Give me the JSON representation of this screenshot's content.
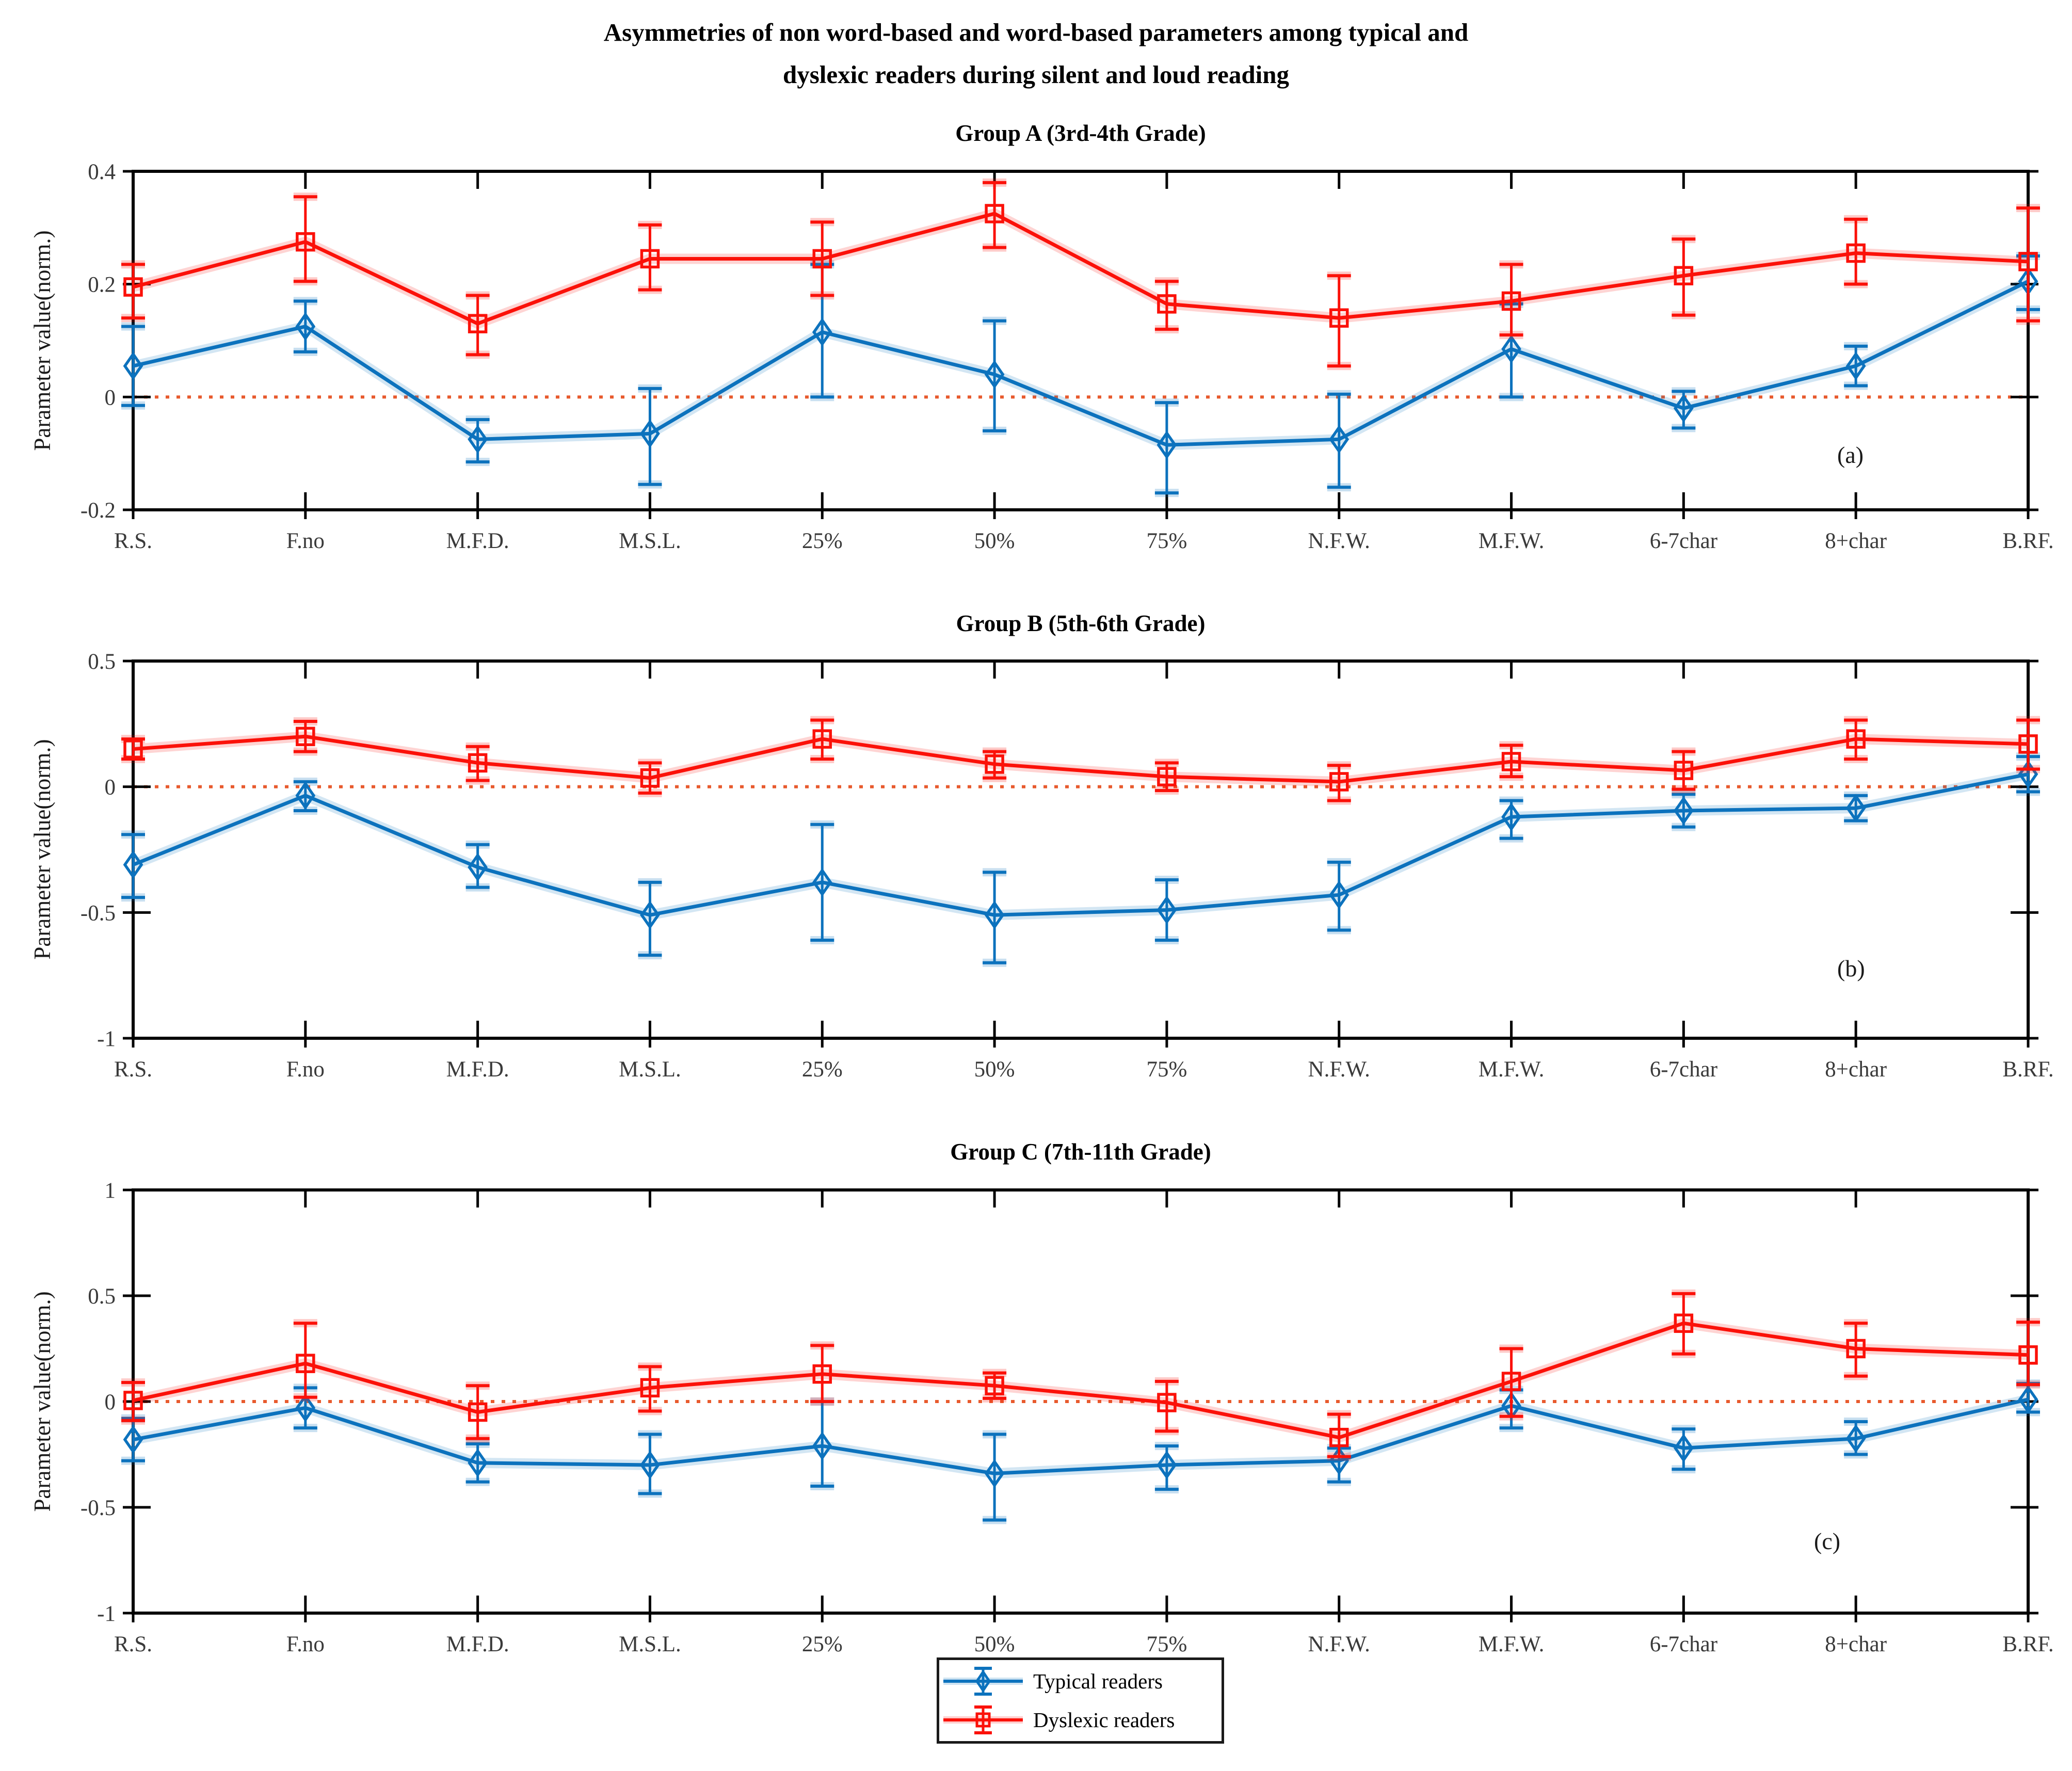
{
  "figure": {
    "title_line1": "Asymmetries of non word-based and word-based parameters among typical and",
    "title_line2": "dyslexic readers during silent and loud reading",
    "colors": {
      "typical": "#0C72BD",
      "dyslexic": "#FB1109",
      "zero_line": "#E85A2D",
      "axis": "#000000",
      "tick_label": "#3A3A3A"
    }
  },
  "legend": {
    "items": [
      {
        "label": "Typical readers",
        "color": "#0C72BD",
        "marker": "diamond"
      },
      {
        "label": "Dyslexic readers",
        "color": "#FB1109",
        "marker": "square"
      }
    ]
  },
  "chart_data": [
    {
      "type": "line",
      "title": "Group A (3rd-4th Grade)",
      "panel_label": "(a)",
      "ylabel": "Parameter value(norm.)",
      "ylim": [
        -0.2,
        0.4
      ],
      "yticks": [
        0.4,
        0.2,
        0,
        -0.2
      ],
      "grid": false,
      "zero_line": true,
      "legend_position": "bottom-outside",
      "categories": [
        "R.S.",
        "F.no",
        "M.F.D.",
        "M.S.L.",
        "25%",
        "50%",
        "75%",
        "N.F.W.",
        "M.F.W.",
        "6-7char",
        "8+char",
        "B.RF."
      ],
      "series": [
        {
          "name": "Typical readers",
          "color": "#0C72BD",
          "marker": "diamond",
          "values": [
            0.055,
            0.125,
            -0.075,
            -0.065,
            0.115,
            0.04,
            -0.085,
            -0.075,
            0.085,
            -0.02,
            0.055,
            0.205
          ],
          "err_up": [
            0.07,
            0.045,
            0.035,
            0.08,
            0.12,
            0.095,
            0.075,
            0.08,
            0.08,
            0.03,
            0.035,
            0.045
          ],
          "err_down": [
            0.07,
            0.045,
            0.04,
            0.09,
            0.115,
            0.1,
            0.085,
            0.085,
            0.085,
            0.035,
            0.035,
            0.05
          ]
        },
        {
          "name": "Dyslexic readers",
          "color": "#FB1109",
          "marker": "square",
          "values": [
            0.195,
            0.275,
            0.13,
            0.245,
            0.245,
            0.325,
            0.165,
            0.14,
            0.17,
            0.215,
            0.255,
            0.24
          ],
          "err_up": [
            0.04,
            0.08,
            0.05,
            0.06,
            0.065,
            0.055,
            0.04,
            0.075,
            0.065,
            0.065,
            0.06,
            0.095
          ],
          "err_down": [
            0.055,
            0.07,
            0.055,
            0.055,
            0.065,
            0.06,
            0.045,
            0.085,
            0.06,
            0.07,
            0.055,
            0.105
          ]
        }
      ]
    },
    {
      "type": "line",
      "title": "Group B (5th-6th Grade)",
      "panel_label": "(b)",
      "ylabel": "Parameter value(norm.)",
      "ylim": [
        -1,
        0.5
      ],
      "yticks": [
        0.5,
        0,
        -0.5,
        -1
      ],
      "grid": false,
      "zero_line": true,
      "legend_position": "bottom-outside",
      "categories": [
        "R.S.",
        "F.no",
        "M.F.D.",
        "M.S.L.",
        "25%",
        "50%",
        "75%",
        "N.F.W.",
        "M.F.W.",
        "6-7char",
        "8+char",
        "B.RF."
      ],
      "series": [
        {
          "name": "Typical readers",
          "color": "#0C72BD",
          "marker": "diamond",
          "values": [
            -0.31,
            -0.035,
            -0.32,
            -0.51,
            -0.38,
            -0.51,
            -0.49,
            -0.43,
            -0.12,
            -0.095,
            -0.085,
            0.05
          ],
          "err_up": [
            0.12,
            0.055,
            0.09,
            0.13,
            0.23,
            0.17,
            0.12,
            0.13,
            0.065,
            0.065,
            0.05,
            0.07
          ],
          "err_down": [
            0.13,
            0.06,
            0.08,
            0.16,
            0.23,
            0.19,
            0.12,
            0.14,
            0.085,
            0.065,
            0.05,
            0.07
          ]
        },
        {
          "name": "Dyslexic readers",
          "color": "#FB1109",
          "marker": "square",
          "values": [
            0.15,
            0.2,
            0.095,
            0.035,
            0.19,
            0.09,
            0.04,
            0.02,
            0.1,
            0.065,
            0.19,
            0.17
          ],
          "err_up": [
            0.04,
            0.06,
            0.065,
            0.06,
            0.075,
            0.05,
            0.055,
            0.065,
            0.065,
            0.075,
            0.075,
            0.095
          ],
          "err_down": [
            0.04,
            0.06,
            0.07,
            0.06,
            0.08,
            0.055,
            0.055,
            0.075,
            0.06,
            0.075,
            0.08,
            0.1
          ]
        }
      ]
    },
    {
      "type": "line",
      "title": "Group C (7th-11th Grade)",
      "panel_label": "(c)",
      "ylabel": "Parameter value(norm.)",
      "ylim": [
        -1,
        1
      ],
      "yticks": [
        1,
        0.5,
        0,
        -0.5,
        -1
      ],
      "grid": false,
      "zero_line": true,
      "legend_position": "bottom-outside",
      "categories": [
        "R.S.",
        "F.no",
        "M.F.D.",
        "M.S.L.",
        "25%",
        "50%",
        "75%",
        "N.F.W.",
        "M.F.W.",
        "6-7char",
        "8+char",
        "B.RF."
      ],
      "series": [
        {
          "name": "Typical readers",
          "color": "#0C72BD",
          "marker": "diamond",
          "values": [
            -0.18,
            -0.03,
            -0.29,
            -0.3,
            -0.21,
            -0.34,
            -0.3,
            -0.28,
            -0.02,
            -0.22,
            -0.175,
            0.01
          ],
          "err_up": [
            0.1,
            0.095,
            0.09,
            0.145,
            0.21,
            0.185,
            0.09,
            0.06,
            0.075,
            0.09,
            0.08,
            0.075
          ],
          "err_down": [
            0.1,
            0.095,
            0.09,
            0.135,
            0.19,
            0.22,
            0.115,
            0.1,
            0.105,
            0.1,
            0.075,
            0.06
          ]
        },
        {
          "name": "Dyslexic readers",
          "color": "#FB1109",
          "marker": "square",
          "values": [
            0.005,
            0.18,
            -0.05,
            0.065,
            0.13,
            0.075,
            -0.005,
            -0.17,
            0.095,
            0.37,
            0.25,
            0.22
          ],
          "err_up": [
            0.085,
            0.19,
            0.125,
            0.1,
            0.135,
            0.06,
            0.1,
            0.11,
            0.155,
            0.14,
            0.12,
            0.155
          ],
          "err_down": [
            0.095,
            0.16,
            0.125,
            0.11,
            0.13,
            0.06,
            0.135,
            0.09,
            0.165,
            0.145,
            0.13,
            0.14
          ]
        }
      ]
    }
  ]
}
